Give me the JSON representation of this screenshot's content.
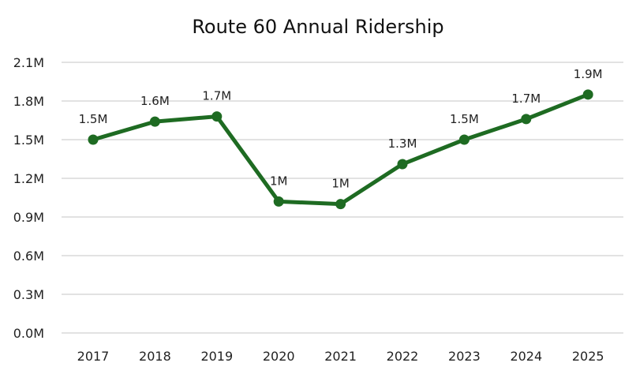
{
  "chart_data": {
    "type": "line",
    "title": "Route 60 Annual Ridership",
    "xlabel": "",
    "ylabel": "",
    "categories": [
      "2017",
      "2018",
      "2019",
      "2020",
      "2021",
      "2022",
      "2023",
      "2024",
      "2025"
    ],
    "series": [
      {
        "values": [
          1.5,
          1.64,
          1.68,
          1.02,
          1.0,
          1.31,
          1.5,
          1.66,
          1.85
        ],
        "data_labels": [
          "1.5M",
          "1.6M",
          "1.7M",
          "1M",
          "1M",
          "1.3M",
          "1.5M",
          "1.7M",
          "1.9M"
        ],
        "color": "#1e6b22"
      }
    ],
    "ylim": [
      0,
      2.1
    ],
    "yticks": [
      0,
      0.3,
      0.6,
      0.9,
      1.2,
      1.5,
      1.8,
      2.1
    ],
    "ytick_labels": [
      "0.0M",
      "0.3M",
      "0.6M",
      "0.9M",
      "1.2M",
      "1.5M",
      "1.8M",
      "2.1M"
    ],
    "grid": true,
    "legend": "none"
  }
}
